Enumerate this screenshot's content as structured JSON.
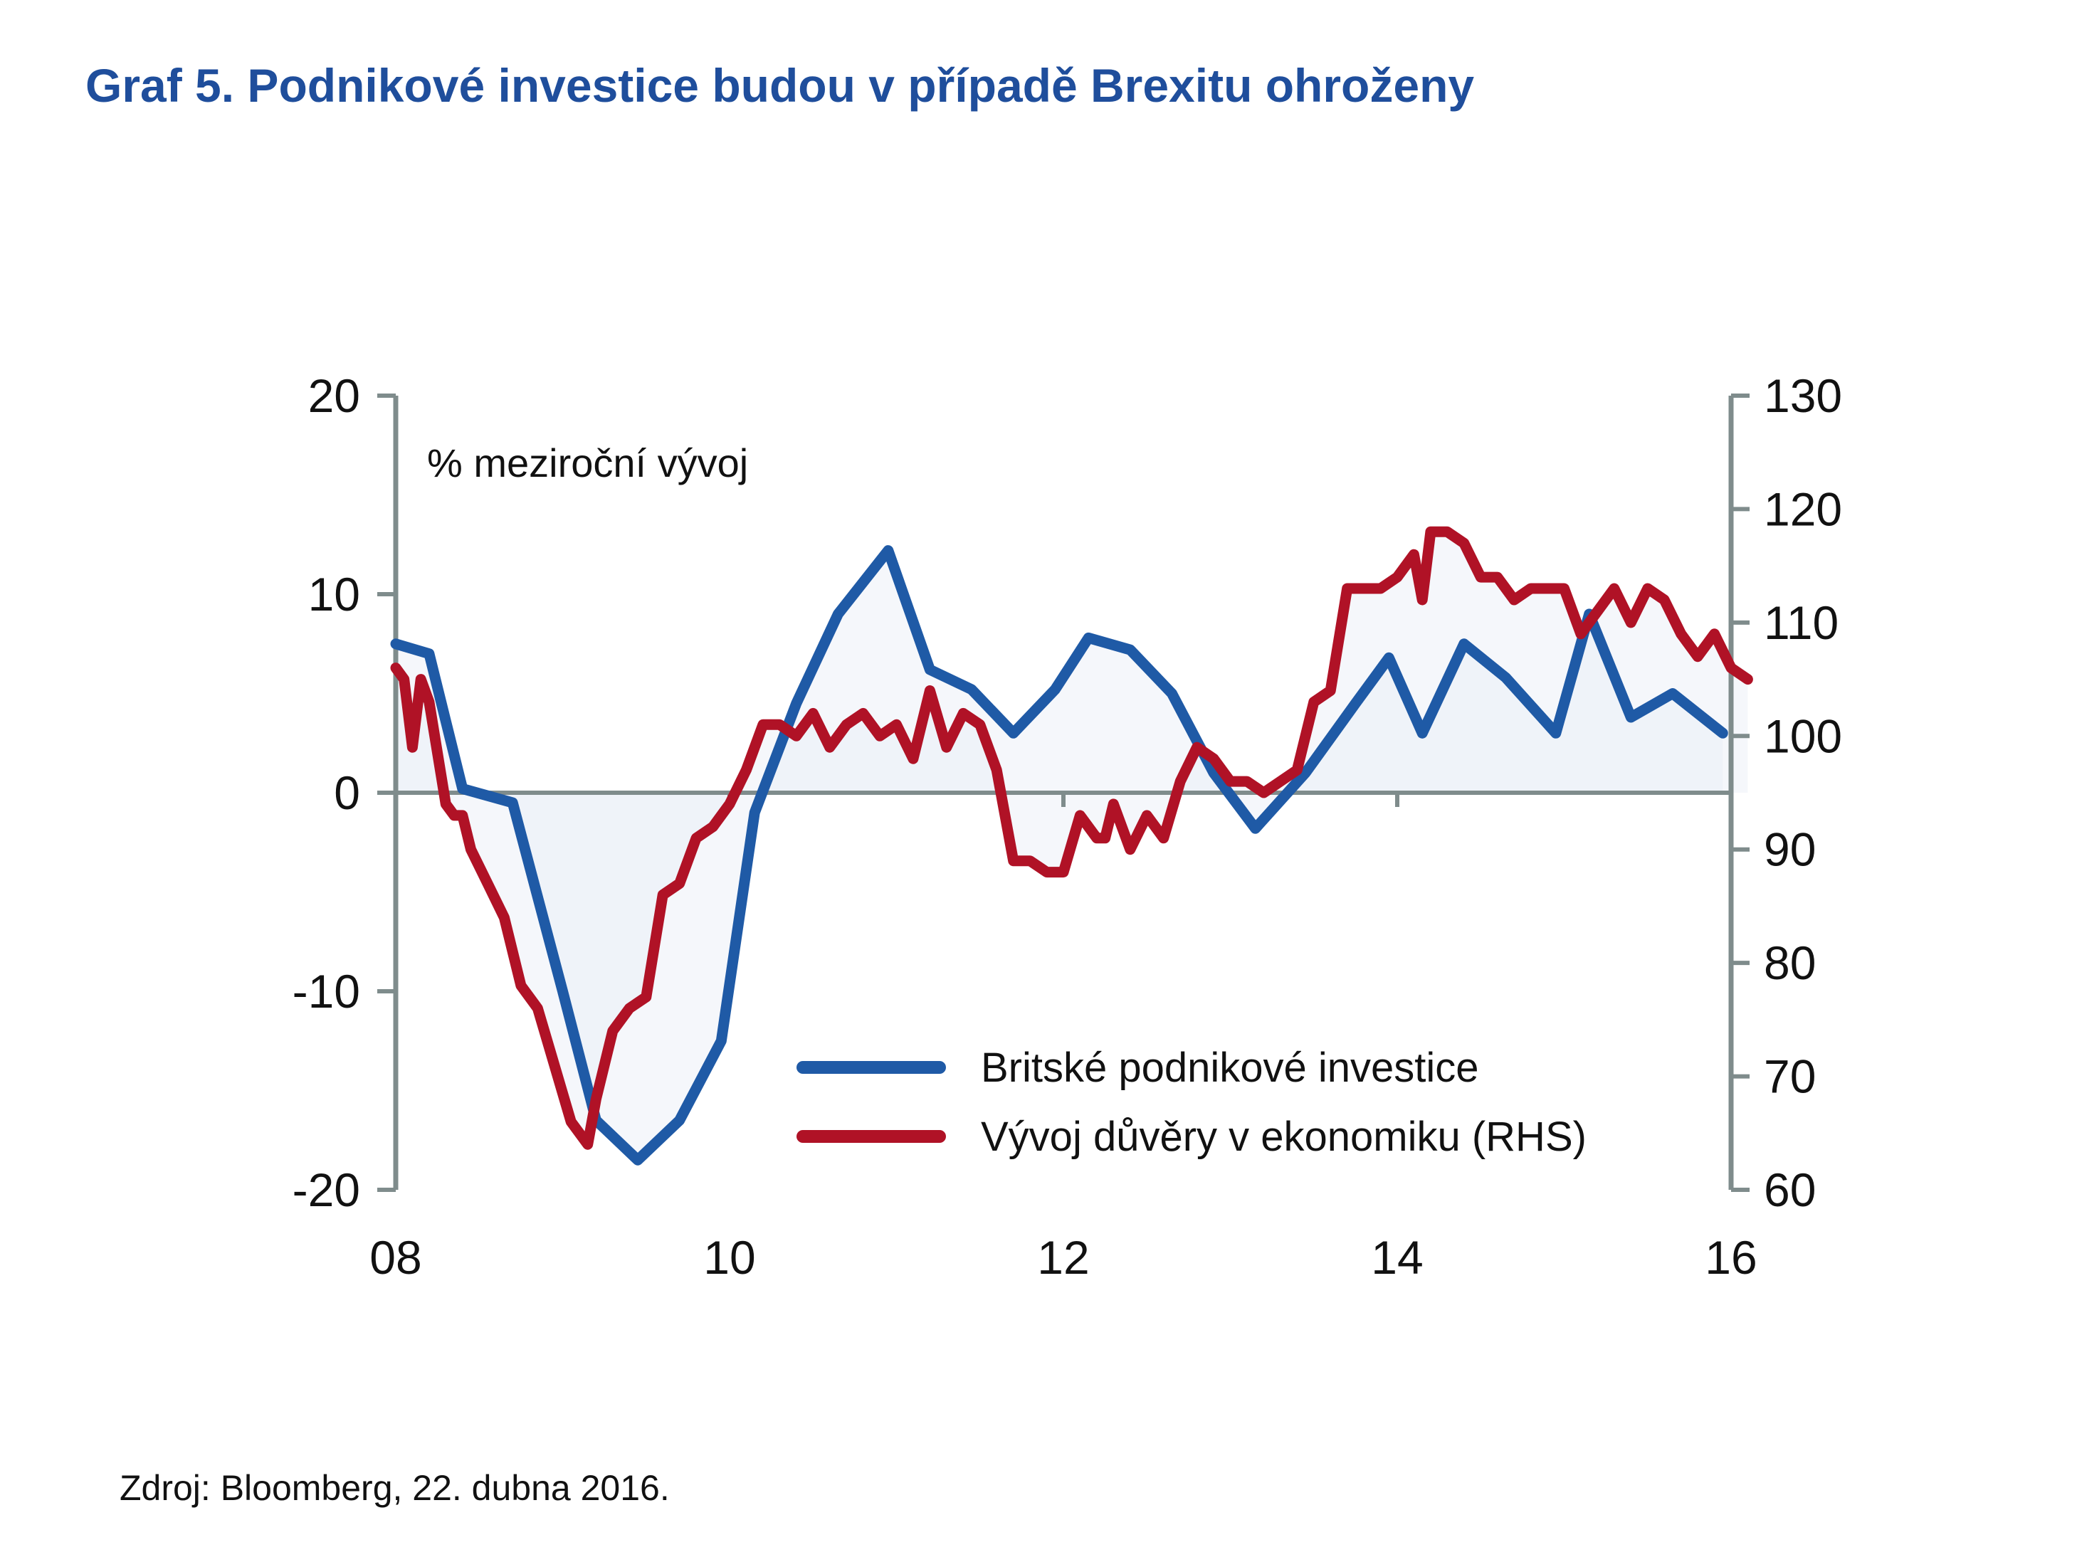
{
  "title": "Graf 5. Podnikové investice budou v případě Brexitu ohroženy",
  "source": "Zdroj: Bloomberg, 22. dubna 2016.",
  "chart_data": {
    "type": "line",
    "ylabel": "% meziroční vývoj",
    "ylim": [
      -20,
      20
    ],
    "y2lim": [
      60,
      130
    ],
    "xlim": [
      2008,
      2016
    ],
    "x_ticks": [
      2008,
      2010,
      2012,
      2014,
      2016
    ],
    "x_tick_labels": [
      "08",
      "10",
      "12",
      "14",
      "16"
    ],
    "y_ticks": [
      -20,
      -10,
      0,
      10,
      20
    ],
    "y_tick_labels": [
      "-20",
      "-10",
      "0",
      "10",
      "20"
    ],
    "y2_ticks": [
      60,
      70,
      80,
      90,
      100,
      110,
      120,
      130
    ],
    "y2_tick_labels": [
      "60",
      "70",
      "80",
      "90",
      "100",
      "110",
      "120",
      "130"
    ],
    "grid": false,
    "legend_position": "bottom-right",
    "colors": {
      "axis": "#7f8c8c",
      "investment": "#1f5aa6",
      "confidence": "#b01226"
    },
    "series": [
      {
        "name": "Britské podnikové investice",
        "axis": "left",
        "x": [
          2008.0,
          2008.2,
          2008.4,
          2008.7,
          2009.0,
          2009.2,
          2009.45,
          2009.7,
          2009.95,
          2010.15,
          2010.4,
          2010.65,
          2010.95,
          2011.2,
          2011.45,
          2011.7,
          2011.95,
          2012.15,
          2012.4,
          2012.65,
          2012.9,
          2013.15,
          2013.45,
          2013.75,
          2013.95,
          2014.15,
          2014.4,
          2014.65,
          2014.95,
          2015.15,
          2015.4,
          2015.65,
          2015.95
        ],
        "values": [
          7.5,
          7.0,
          0.2,
          -0.5,
          -10.0,
          -16.5,
          -18.5,
          -16.5,
          -12.5,
          -1.0,
          4.5,
          9.0,
          12.2,
          6.2,
          5.2,
          3.0,
          5.2,
          7.8,
          7.2,
          5.0,
          1.0,
          -1.8,
          1.0,
          4.5,
          6.8,
          3.0,
          7.5,
          5.8,
          3.0,
          9.0,
          3.8,
          5.0,
          3.0
        ]
      },
      {
        "name": "Vývoj důvěry v ekonomiku (RHS)",
        "axis": "right",
        "x": [
          2008.0,
          2008.05,
          2008.1,
          2008.15,
          2008.2,
          2008.3,
          2008.35,
          2008.4,
          2008.45,
          2008.55,
          2008.65,
          2008.75,
          2008.85,
          2008.95,
          2009.05,
          2009.15,
          2009.2,
          2009.3,
          2009.4,
          2009.5,
          2009.6,
          2009.7,
          2009.8,
          2009.9,
          2010.0,
          2010.1,
          2010.2,
          2010.3,
          2010.4,
          2010.5,
          2010.6,
          2010.7,
          2010.8,
          2010.9,
          2011.0,
          2011.1,
          2011.2,
          2011.3,
          2011.4,
          2011.5,
          2011.6,
          2011.7,
          2011.8,
          2011.9,
          2012.0,
          2012.1,
          2012.2,
          2012.25,
          2012.3,
          2012.4,
          2012.5,
          2012.6,
          2012.7,
          2012.8,
          2012.9,
          2013.0,
          2013.1,
          2013.2,
          2013.3,
          2013.4,
          2013.5,
          2013.6,
          2013.7,
          2013.8,
          2013.9,
          2014.0,
          2014.1,
          2014.15,
          2014.2,
          2014.3,
          2014.4,
          2014.5,
          2014.6,
          2014.7,
          2014.8,
          2014.9,
          2015.0,
          2015.1,
          2015.2,
          2015.3,
          2015.4,
          2015.5,
          2015.6,
          2015.7,
          2015.8,
          2015.9,
          2016.0,
          2016.1
        ],
        "values": [
          106,
          105,
          99,
          105,
          103,
          94,
          93,
          93,
          90,
          87,
          84,
          78,
          76,
          71,
          66,
          64,
          68,
          74,
          76,
          77,
          86,
          87,
          91,
          92,
          94,
          97,
          101,
          101,
          100,
          102,
          99,
          101,
          102,
          100,
          101,
          98,
          104,
          99,
          102,
          101,
          97,
          89,
          89,
          88,
          88,
          93,
          91,
          91,
          94,
          90,
          93,
          91,
          96,
          99,
          98,
          96,
          96,
          95,
          96,
          97,
          103,
          104,
          113,
          113,
          113,
          114,
          116,
          112,
          118,
          118,
          117,
          114,
          114,
          112,
          113,
          113,
          113,
          109,
          111,
          113,
          110,
          113,
          112,
          109,
          107,
          109,
          106,
          105
        ]
      }
    ]
  }
}
